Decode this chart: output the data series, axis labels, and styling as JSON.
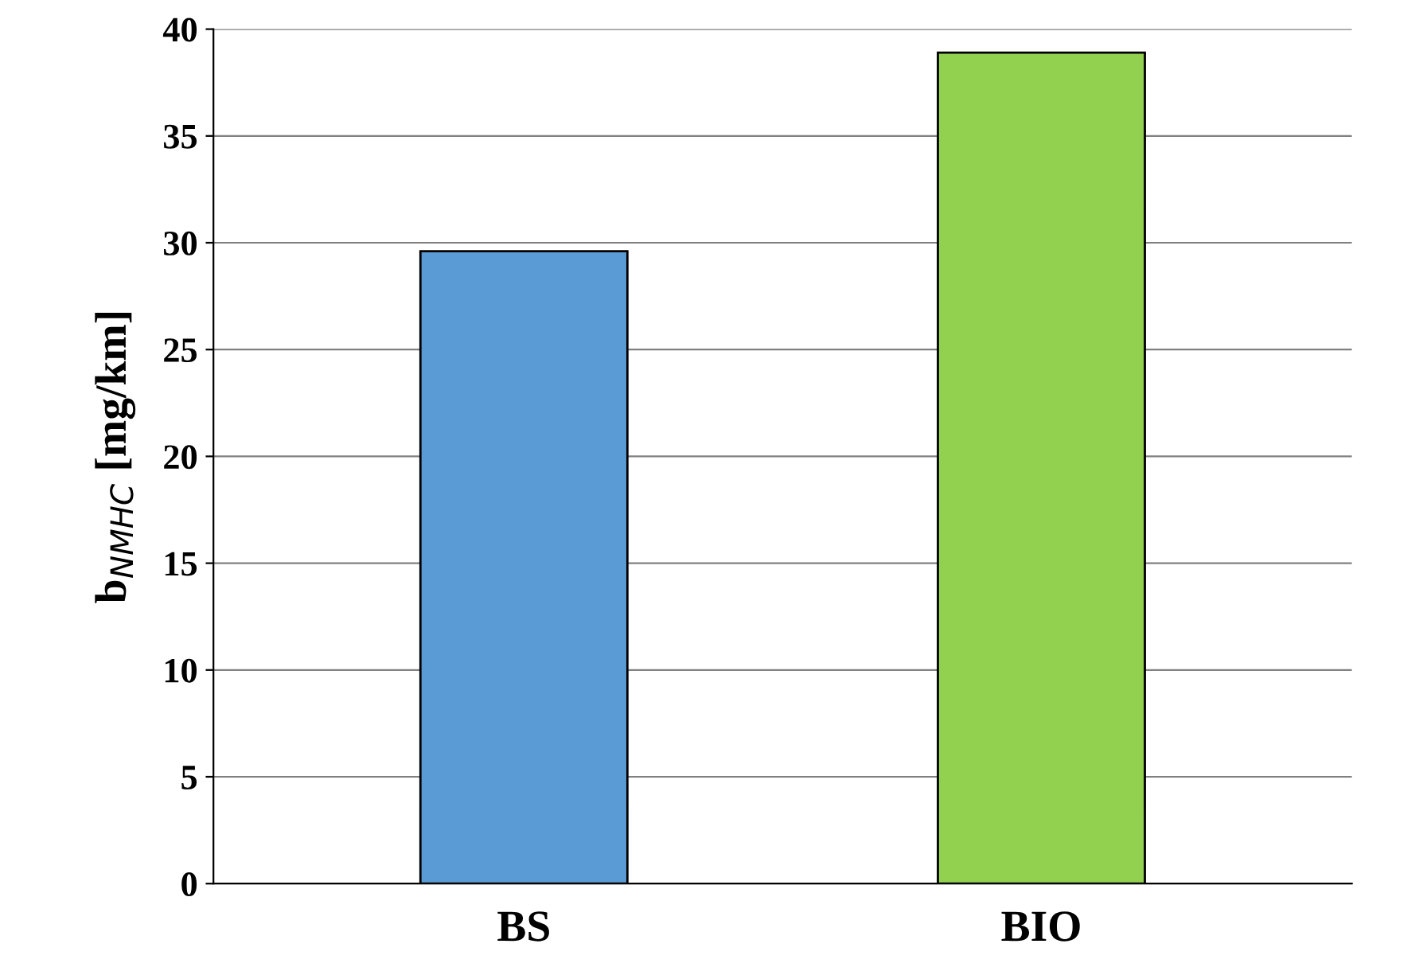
{
  "chart_data": {
    "type": "bar",
    "ylabel": "b$_{NMHC}$ [mg/km]",
    "categories": [
      "BS",
      "BIO"
    ],
    "values": [
      29.6,
      38.9
    ],
    "colors": [
      "#5b9bd5",
      "#92d050"
    ],
    "ylim": [
      0,
      40
    ],
    "yticks": [
      0,
      5,
      10,
      15,
      20,
      25,
      30,
      35,
      40
    ],
    "grid": "y"
  }
}
